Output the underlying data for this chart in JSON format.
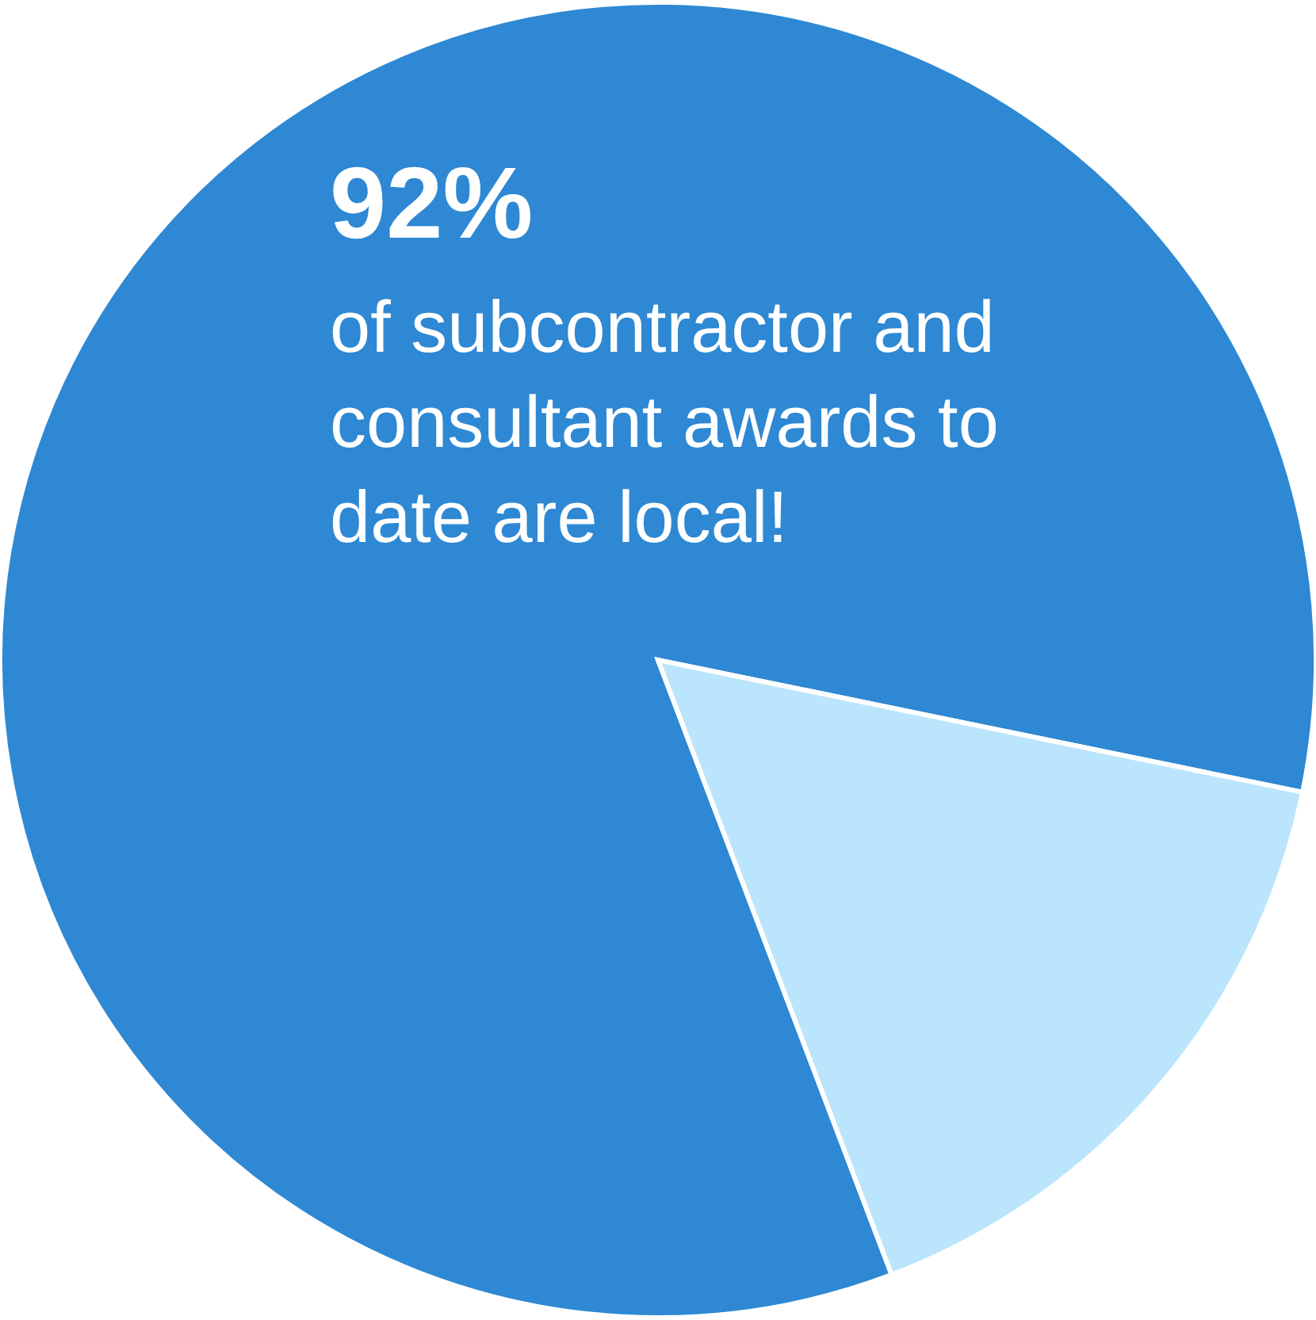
{
  "chart_data": {
    "type": "pie",
    "categories": [
      null,
      null
    ],
    "values": [
      84,
      16
    ],
    "colors": [
      "#2e88d3",
      "#bbe5fc"
    ],
    "annotations": [
      "92%",
      "of subcontractor and",
      "consultant awards to",
      "date are local!"
    ]
  }
}
